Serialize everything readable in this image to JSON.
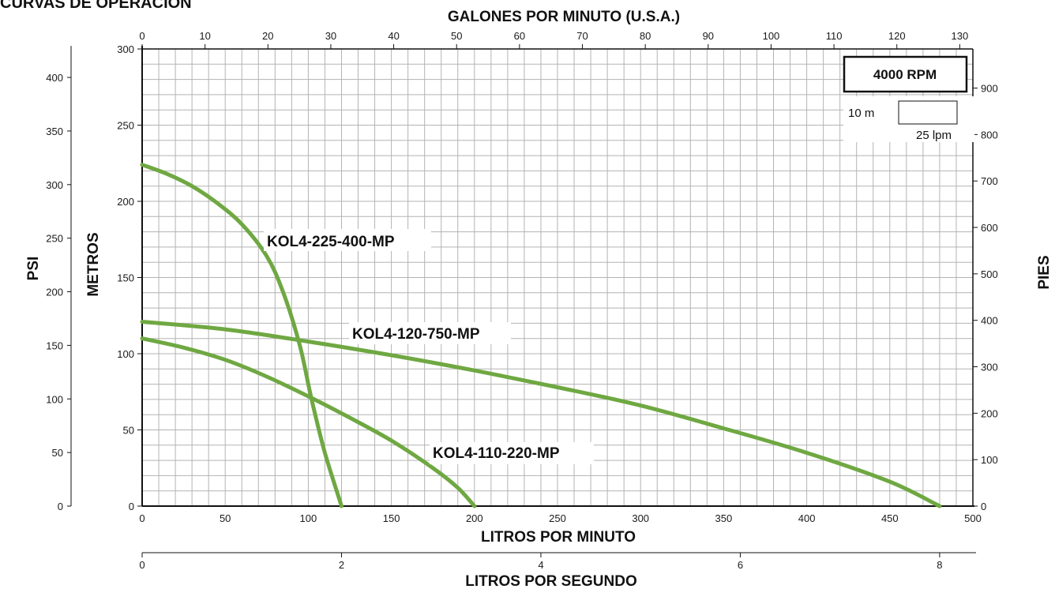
{
  "page_title": "CURVAS DE OPERACIÓN",
  "rpm_label": "4000 RPM",
  "scale_box": {
    "height_label": "10 m",
    "flow_label": "25 lpm"
  },
  "chart_data": {
    "type": "line",
    "x": {
      "label": "LITROS POR MINUTO",
      "range": [
        0,
        500
      ],
      "ticks": [
        0,
        50,
        100,
        150,
        200,
        250,
        300,
        350,
        400,
        450,
        500
      ]
    },
    "x_top": {
      "label": "GALONES POR MINUTO (U.S.A.)",
      "ticks": [
        0,
        10,
        20,
        30,
        40,
        50,
        60,
        70,
        80,
        90,
        100,
        110,
        120,
        130
      ]
    },
    "x_bottom2": {
      "label": "LITROS POR SEGUNDO",
      "ticks": [
        0,
        2,
        4,
        6,
        8
      ]
    },
    "y": {
      "label": "METROS",
      "range": [
        0,
        300
      ],
      "ticks": [
        0,
        50,
        100,
        150,
        200,
        250,
        300
      ]
    },
    "y_psi": {
      "label": "PSI",
      "ticks": [
        0,
        50,
        100,
        150,
        200,
        250,
        300,
        350,
        400
      ]
    },
    "y_right": {
      "label": "PIES",
      "ticks": [
        0,
        100,
        200,
        300,
        400,
        500,
        600,
        700,
        800,
        900
      ]
    },
    "grid": true,
    "series": [
      {
        "name": "KOL4-225-400-MP",
        "color": "#6fa842",
        "points": [
          [
            0,
            224
          ],
          [
            15,
            218
          ],
          [
            30,
            210
          ],
          [
            45,
            199
          ],
          [
            60,
            185
          ],
          [
            75,
            164
          ],
          [
            85,
            140
          ],
          [
            95,
            105
          ],
          [
            102,
            70
          ],
          [
            110,
            35
          ],
          [
            120,
            0
          ]
        ]
      },
      {
        "name": "KOL4-120-750-MP",
        "color": "#6fa842",
        "points": [
          [
            0,
            121
          ],
          [
            50,
            116
          ],
          [
            100,
            108
          ],
          [
            150,
            99
          ],
          [
            200,
            89
          ],
          [
            250,
            78
          ],
          [
            300,
            66
          ],
          [
            350,
            51
          ],
          [
            400,
            35
          ],
          [
            450,
            16
          ],
          [
            480,
            0
          ]
        ]
      },
      {
        "name": "KOL4-110-220-MP",
        "color": "#6fa842",
        "points": [
          [
            0,
            110
          ],
          [
            25,
            104
          ],
          [
            50,
            96
          ],
          [
            75,
            85
          ],
          [
            100,
            72
          ],
          [
            125,
            58
          ],
          [
            150,
            43
          ],
          [
            175,
            25
          ],
          [
            190,
            12
          ],
          [
            200,
            0
          ]
        ]
      }
    ]
  }
}
